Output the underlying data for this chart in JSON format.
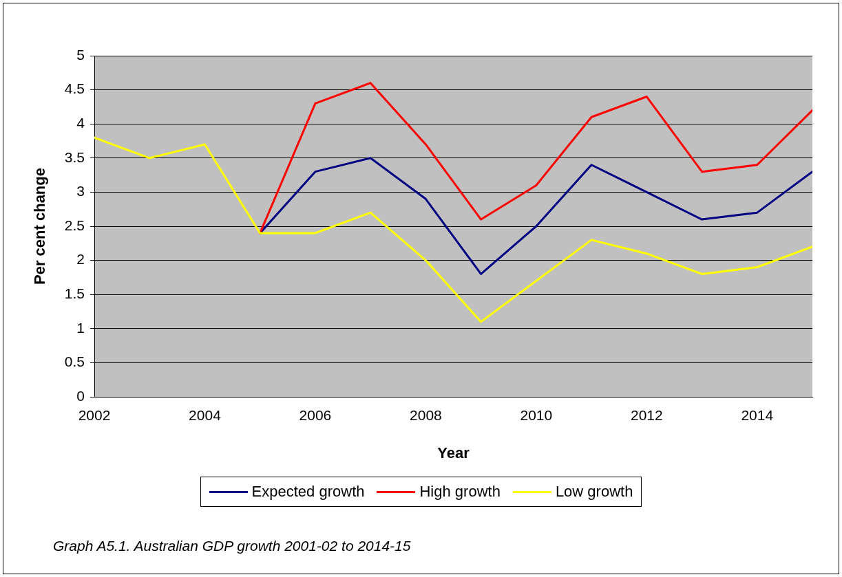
{
  "chart_data": {
    "type": "line",
    "xlabel": "Year",
    "ylabel": "Per cent change",
    "x": [
      2002,
      2003,
      2004,
      2005,
      2006,
      2007,
      2008,
      2009,
      2010,
      2011,
      2012,
      2013,
      2014,
      2015
    ],
    "xlim": [
      2002,
      2015
    ],
    "xticks": [
      2002,
      2004,
      2006,
      2008,
      2010,
      2012,
      2014
    ],
    "ylim": [
      0,
      5
    ],
    "yticks": [
      0,
      0.5,
      1,
      1.5,
      2,
      2.5,
      3,
      3.5,
      4,
      4.5,
      5
    ],
    "series": [
      {
        "name": "Expected growth",
        "color": "#000080",
        "values": [
          null,
          null,
          null,
          2.4,
          3.3,
          3.5,
          2.9,
          1.8,
          2.5,
          3.4,
          3.0,
          2.6,
          2.7,
          3.3
        ]
      },
      {
        "name": "High growth",
        "color": "#ff0000",
        "values": [
          null,
          null,
          null,
          2.4,
          4.3,
          4.6,
          3.7,
          2.6,
          3.1,
          4.1,
          4.4,
          3.3,
          3.4,
          4.2
        ]
      },
      {
        "name": "Low growth",
        "color": "#ffff00",
        "values": [
          3.8,
          3.5,
          3.7,
          2.4,
          2.4,
          2.7,
          2.0,
          1.1,
          1.7,
          2.3,
          2.1,
          1.8,
          1.9,
          2.2
        ]
      }
    ],
    "grid": "y",
    "legend": "bottom",
    "marker": "none",
    "line_style": "solid",
    "annotations": [
      "Graph A5.1. Australian GDP growth 2001-02 to 2014-15"
    ]
  }
}
